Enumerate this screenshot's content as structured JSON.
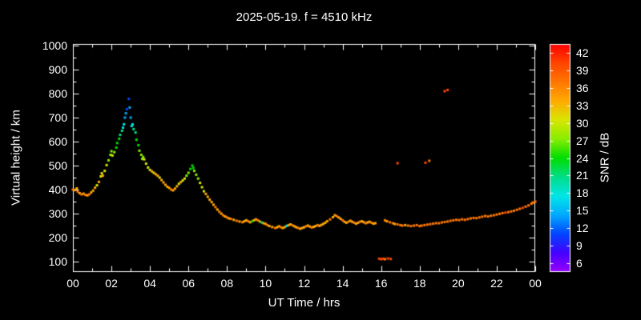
{
  "chart_data": {
    "type": "scatter",
    "title": "2025-05-19. f = 4510 kHz",
    "xlabel": "UT Time / hrs",
    "ylabel": "Virtual height / km",
    "xlim": [
      0,
      24
    ],
    "ylim": [
      100,
      1000
    ],
    "grid": false,
    "x_tick_hours": [
      0,
      2,
      4,
      6,
      8,
      10,
      12,
      14,
      16,
      18,
      20,
      22,
      24
    ],
    "x_tick_labels": [
      "00",
      "02",
      "04",
      "06",
      "08",
      "10",
      "12",
      "14",
      "16",
      "18",
      "20",
      "22",
      "00"
    ],
    "y_ticks": [
      100,
      200,
      300,
      400,
      500,
      600,
      700,
      800,
      900,
      1000
    ],
    "colors": {
      "background": "#000000",
      "foreground": "#ffffff"
    },
    "colorbar": {
      "label": "SNR / dB",
      "ticks": [
        6,
        9,
        12,
        15,
        18,
        21,
        24,
        27,
        30,
        33,
        36,
        39,
        42
      ],
      "min": 4.5,
      "max": 43.5,
      "colors": [
        "#9900ff",
        "#4400ff",
        "#0044ff",
        "#00aaff",
        "#00e6e6",
        "#00dd88",
        "#00dd00",
        "#88ee00",
        "#d8e600",
        "#ffaa00",
        "#ff7700",
        "#ff4400",
        "#ff0000"
      ]
    },
    "points": [
      [
        0.0,
        400,
        36
      ],
      [
        0.1,
        398,
        33
      ],
      [
        0.2,
        405,
        33
      ],
      [
        0.25,
        392,
        36
      ],
      [
        0.35,
        385,
        33
      ],
      [
        0.45,
        380,
        36
      ],
      [
        0.55,
        383,
        33
      ],
      [
        0.65,
        378,
        36
      ],
      [
        0.75,
        376,
        33
      ],
      [
        0.85,
        380,
        36
      ],
      [
        0.95,
        388,
        33
      ],
      [
        1.05,
        396,
        33
      ],
      [
        1.15,
        408,
        33
      ],
      [
        1.25,
        418,
        30
      ],
      [
        1.35,
        432,
        33
      ],
      [
        1.45,
        455,
        30
      ],
      [
        1.5,
        468,
        30
      ],
      [
        1.55,
        458,
        33
      ],
      [
        1.65,
        478,
        30
      ],
      [
        1.75,
        502,
        30
      ],
      [
        1.85,
        522,
        27
      ],
      [
        1.95,
        545,
        27
      ],
      [
        2.0,
        560,
        27
      ],
      [
        2.05,
        542,
        30
      ],
      [
        2.15,
        556,
        27
      ],
      [
        2.25,
        575,
        24
      ],
      [
        2.3,
        594,
        24
      ],
      [
        2.4,
        612,
        24
      ],
      [
        2.45,
        628,
        21
      ],
      [
        2.55,
        645,
        21
      ],
      [
        2.6,
        658,
        18
      ],
      [
        2.65,
        672,
        18
      ],
      [
        2.7,
        700,
        15
      ],
      [
        2.75,
        718,
        15
      ],
      [
        2.8,
        735,
        12
      ],
      [
        2.9,
        778,
        12
      ],
      [
        2.95,
        742,
        15
      ],
      [
        3.0,
        700,
        15
      ],
      [
        3.05,
        665,
        18
      ],
      [
        3.1,
        672,
        18
      ],
      [
        3.15,
        652,
        21
      ],
      [
        3.25,
        638,
        21
      ],
      [
        3.3,
        608,
        24
      ],
      [
        3.4,
        585,
        24
      ],
      [
        3.45,
        562,
        27
      ],
      [
        3.55,
        545,
        27
      ],
      [
        3.6,
        528,
        27
      ],
      [
        3.65,
        536,
        27
      ],
      [
        3.7,
        526,
        30
      ],
      [
        3.8,
        508,
        30
      ],
      [
        3.9,
        492,
        30
      ],
      [
        4.0,
        482,
        30
      ],
      [
        4.1,
        476,
        33
      ],
      [
        4.2,
        470,
        30
      ],
      [
        4.3,
        464,
        33
      ],
      [
        4.4,
        458,
        33
      ],
      [
        4.5,
        450,
        30
      ],
      [
        4.6,
        440,
        33
      ],
      [
        4.7,
        430,
        33
      ],
      [
        4.8,
        420,
        33
      ],
      [
        4.9,
        412,
        33
      ],
      [
        5.0,
        407,
        33
      ],
      [
        5.1,
        400,
        36
      ],
      [
        5.2,
        397,
        33
      ],
      [
        5.3,
        404,
        33
      ],
      [
        5.4,
        414,
        33
      ],
      [
        5.5,
        424,
        30
      ],
      [
        5.6,
        431,
        33
      ],
      [
        5.7,
        438,
        30
      ],
      [
        5.8,
        446,
        30
      ],
      [
        5.9,
        458,
        27
      ],
      [
        6.0,
        470,
        27
      ],
      [
        6.1,
        486,
        24
      ],
      [
        6.2,
        500,
        24
      ],
      [
        6.25,
        490,
        24
      ],
      [
        6.3,
        478,
        27
      ],
      [
        6.4,
        462,
        27
      ],
      [
        6.5,
        446,
        27
      ],
      [
        6.6,
        428,
        30
      ],
      [
        6.7,
        410,
        30
      ],
      [
        6.8,
        393,
        30
      ],
      [
        6.9,
        382,
        33
      ],
      [
        7.0,
        370,
        33
      ],
      [
        7.1,
        358,
        33
      ],
      [
        7.2,
        348,
        33
      ],
      [
        7.3,
        337,
        33
      ],
      [
        7.4,
        327,
        36
      ],
      [
        7.5,
        317,
        33
      ],
      [
        7.6,
        308,
        36
      ],
      [
        7.7,
        300,
        33
      ],
      [
        7.8,
        293,
        36
      ],
      [
        7.9,
        288,
        33
      ],
      [
        8.0,
        284,
        36
      ],
      [
        8.1,
        280,
        33
      ],
      [
        8.2,
        278,
        36
      ],
      [
        8.35,
        274,
        33
      ],
      [
        8.5,
        270,
        36
      ],
      [
        8.65,
        267,
        33
      ],
      [
        8.8,
        264,
        36
      ],
      [
        8.9,
        268,
        33
      ],
      [
        9.0,
        272,
        33
      ],
      [
        9.1,
        268,
        36
      ],
      [
        9.2,
        264,
        33
      ],
      [
        9.3,
        268,
        24
      ],
      [
        9.4,
        272,
        33
      ],
      [
        9.5,
        276,
        33
      ],
      [
        9.6,
        272,
        36
      ],
      [
        9.7,
        267,
        33
      ],
      [
        9.8,
        263,
        21
      ],
      [
        9.9,
        260,
        33
      ],
      [
        10.0,
        257,
        33
      ],
      [
        10.1,
        252,
        36
      ],
      [
        10.2,
        248,
        33
      ],
      [
        10.35,
        244,
        33
      ],
      [
        10.5,
        240,
        36
      ],
      [
        10.6,
        243,
        33
      ],
      [
        10.7,
        247,
        33
      ],
      [
        10.8,
        243,
        36
      ],
      [
        10.9,
        240,
        33
      ],
      [
        11.0,
        244,
        33
      ],
      [
        11.1,
        249,
        18
      ],
      [
        11.2,
        252,
        33
      ],
      [
        11.3,
        255,
        33
      ],
      [
        11.4,
        251,
        36
      ],
      [
        11.5,
        247,
        33
      ],
      [
        11.6,
        243,
        33
      ],
      [
        11.7,
        240,
        36
      ],
      [
        11.8,
        237,
        33
      ],
      [
        11.9,
        240,
        33
      ],
      [
        12.0,
        243,
        33
      ],
      [
        12.1,
        247,
        36
      ],
      [
        12.2,
        250,
        33
      ],
      [
        12.3,
        246,
        33
      ],
      [
        12.4,
        242,
        36
      ],
      [
        12.5,
        245,
        33
      ],
      [
        12.6,
        248,
        33
      ],
      [
        12.7,
        252,
        36
      ],
      [
        12.8,
        249,
        33
      ],
      [
        12.9,
        253,
        33
      ],
      [
        13.0,
        257,
        33
      ],
      [
        13.1,
        262,
        33
      ],
      [
        13.2,
        268,
        33
      ],
      [
        13.35,
        276,
        36
      ],
      [
        13.5,
        285,
        33
      ],
      [
        13.6,
        293,
        33
      ],
      [
        13.7,
        289,
        36
      ],
      [
        13.8,
        284,
        33
      ],
      [
        13.9,
        278,
        33
      ],
      [
        14.0,
        272,
        36
      ],
      [
        14.1,
        266,
        33
      ],
      [
        14.2,
        262,
        33
      ],
      [
        14.3,
        266,
        36
      ],
      [
        14.4,
        270,
        33
      ],
      [
        14.5,
        266,
        33
      ],
      [
        14.6,
        262,
        36
      ],
      [
        14.7,
        258,
        33
      ],
      [
        14.8,
        262,
        33
      ],
      [
        14.9,
        266,
        36
      ],
      [
        15.0,
        268,
        33
      ],
      [
        15.1,
        264,
        33
      ],
      [
        15.2,
        260,
        36
      ],
      [
        15.3,
        263,
        33
      ],
      [
        15.4,
        266,
        33
      ],
      [
        15.5,
        262,
        36
      ],
      [
        15.6,
        258,
        33
      ],
      [
        15.7,
        260,
        33
      ],
      [
        15.9,
        112,
        39
      ],
      [
        16.0,
        110,
        39
      ],
      [
        16.1,
        112,
        39
      ],
      [
        16.2,
        110,
        36
      ],
      [
        16.35,
        113,
        39
      ],
      [
        16.5,
        111,
        39
      ],
      [
        16.2,
        272,
        36
      ],
      [
        16.3,
        268,
        33
      ],
      [
        16.45,
        264,
        36
      ],
      [
        16.6,
        260,
        36
      ],
      [
        16.7,
        257,
        33
      ],
      [
        16.85,
        255,
        36
      ],
      [
        16.85,
        510,
        39
      ],
      [
        17.0,
        252,
        36
      ],
      [
        17.1,
        250,
        36
      ],
      [
        17.25,
        252,
        33
      ],
      [
        17.4,
        250,
        36
      ],
      [
        17.55,
        248,
        36
      ],
      [
        17.7,
        250,
        36
      ],
      [
        17.85,
        252,
        36
      ],
      [
        18.0,
        248,
        36
      ],
      [
        18.1,
        250,
        36
      ],
      [
        18.25,
        252,
        36
      ],
      [
        18.3,
        512,
        39
      ],
      [
        18.5,
        520,
        36
      ],
      [
        18.4,
        254,
        36
      ],
      [
        18.55,
        256,
        36
      ],
      [
        18.7,
        258,
        36
      ],
      [
        18.85,
        260,
        36
      ],
      [
        19.0,
        260,
        36
      ],
      [
        19.15,
        263,
        36
      ],
      [
        19.3,
        265,
        36
      ],
      [
        19.45,
        267,
        36
      ],
      [
        19.3,
        810,
        39
      ],
      [
        19.45,
        815,
        39
      ],
      [
        19.6,
        270,
        36
      ],
      [
        19.75,
        272,
        36
      ],
      [
        19.9,
        274,
        36
      ],
      [
        20.05,
        273,
        36
      ],
      [
        20.2,
        276,
        36
      ],
      [
        20.35,
        274,
        36
      ],
      [
        20.5,
        277,
        36
      ],
      [
        20.65,
        280,
        36
      ],
      [
        20.8,
        282,
        36
      ],
      [
        20.95,
        281,
        36
      ],
      [
        21.1,
        284,
        36
      ],
      [
        21.25,
        287,
        36
      ],
      [
        21.4,
        290,
        36
      ],
      [
        21.55,
        288,
        36
      ],
      [
        21.7,
        291,
        36
      ],
      [
        21.85,
        293,
        36
      ],
      [
        22.0,
        296,
        36
      ],
      [
        22.15,
        299,
        36
      ],
      [
        22.3,
        302,
        36
      ],
      [
        22.45,
        304,
        39
      ],
      [
        22.6,
        306,
        36
      ],
      [
        22.75,
        309,
        36
      ],
      [
        22.9,
        312,
        36
      ],
      [
        23.05,
        316,
        36
      ],
      [
        23.2,
        320,
        36
      ],
      [
        23.35,
        324,
        39
      ],
      [
        23.5,
        329,
        36
      ],
      [
        23.65,
        334,
        36
      ],
      [
        23.8,
        341,
        36
      ],
      [
        23.9,
        346,
        36
      ],
      [
        24.0,
        350,
        36
      ]
    ]
  }
}
